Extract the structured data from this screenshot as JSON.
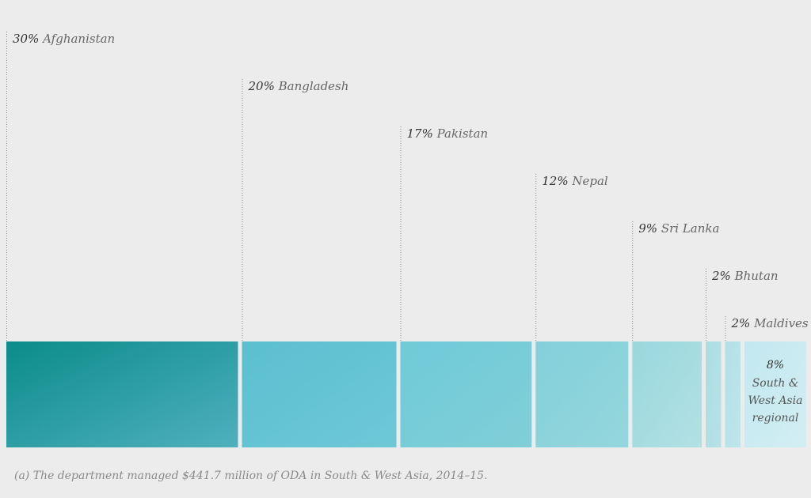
{
  "colors": {
    "background": "#ececec",
    "leader_line": "#8c8c8c",
    "label_percent": "#333333",
    "label_name": "#666666",
    "footnote": "#8a8a8a"
  },
  "chart_data": {
    "type": "bar",
    "orientation": "horizontal-stacked",
    "unit": "%",
    "segments": [
      {
        "value": 30,
        "percent_label": "30%",
        "name": "Afghanistan",
        "color_start": "#0b8c8a",
        "color_end": "#4fb0be"
      },
      {
        "value": 20,
        "percent_label": "20%",
        "name": "Bangladesh",
        "color_start": "#5bbfcf",
        "color_end": "#6ec8d8"
      },
      {
        "value": 17,
        "percent_label": "17%",
        "name": "Pakistan",
        "color_start": "#6fcad8",
        "color_end": "#80cfd8"
      },
      {
        "value": 12,
        "percent_label": "12%",
        "name": "Nepal",
        "color_start": "#83d0da",
        "color_end": "#95d6dd"
      },
      {
        "value": 9,
        "percent_label": "9%",
        "name": "Sri Lanka",
        "color_start": "#99d7de",
        "color_end": "#b2e1e3"
      },
      {
        "value": 2,
        "percent_label": "2%",
        "name": "Bhutan",
        "color_start": "#aadde3",
        "color_end": "#b7e2e7"
      },
      {
        "value": 2,
        "percent_label": "2%",
        "name": "Maldives",
        "color_start": "#b0e0e6",
        "color_end": "#bfe5ea"
      },
      {
        "value": 8,
        "percent_label": "8%",
        "name_lines": [
          "South &",
          "West Asia",
          "regional"
        ],
        "color_start": "#c2e8ef",
        "color_end": "#d2eef3"
      }
    ]
  },
  "footnote": "(a) The department managed $441.7 million of ODA in South & West Asia, 2014–15."
}
